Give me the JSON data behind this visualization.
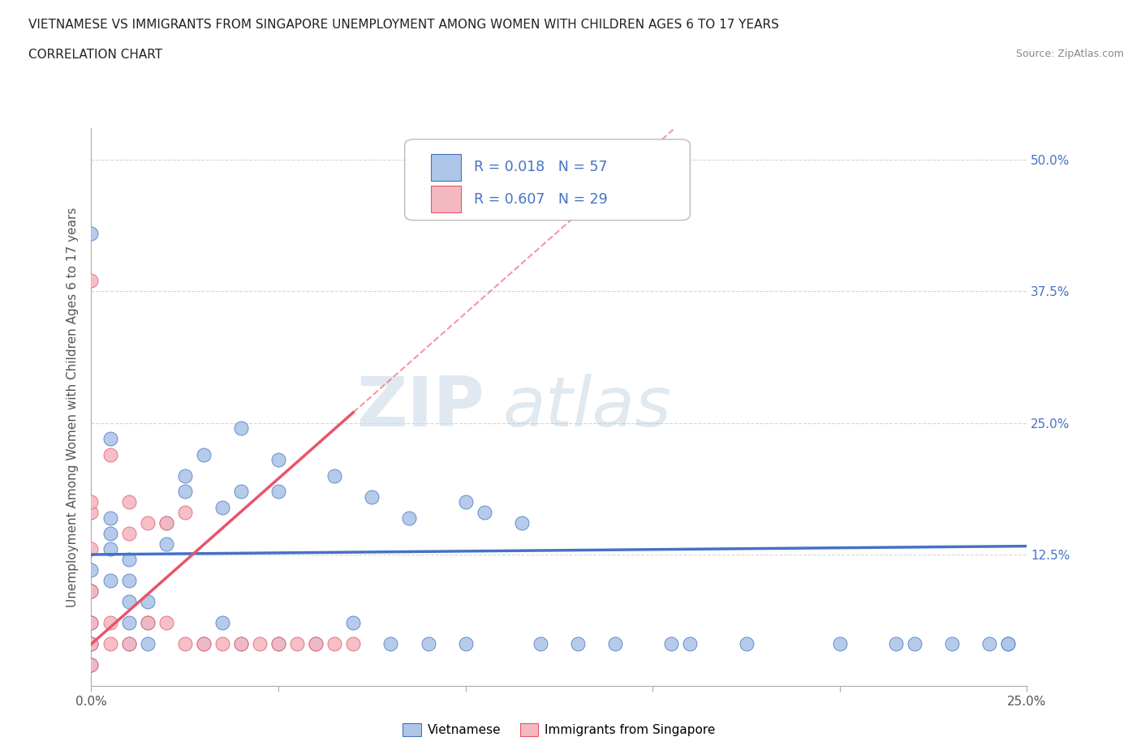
{
  "title_line1": "VIETNAMESE VS IMMIGRANTS FROM SINGAPORE UNEMPLOYMENT AMONG WOMEN WITH CHILDREN AGES 6 TO 17 YEARS",
  "title_line2": "CORRELATION CHART",
  "source_text": "Source: ZipAtlas.com",
  "ylabel": "Unemployment Among Women with Children Ages 6 to 17 years",
  "xlim": [
    0.0,
    0.25
  ],
  "ylim": [
    0.0,
    0.53
  ],
  "x_ticks": [
    0.0,
    0.05,
    0.1,
    0.15,
    0.2,
    0.25
  ],
  "x_tick_labels": [
    "0.0%",
    "",
    "",
    "",
    "",
    "25.0%"
  ],
  "y_ticks": [
    0.0,
    0.125,
    0.25,
    0.375,
    0.5
  ],
  "y_tick_labels_right": [
    "",
    "12.5%",
    "25.0%",
    "37.5%",
    "50.0%"
  ],
  "r_vietnamese": 0.018,
  "n_vietnamese": 57,
  "r_singapore": 0.607,
  "n_singapore": 29,
  "color_vietnamese": "#aec6e8",
  "color_singapore": "#f4b8c1",
  "line_color_vietnamese": "#4472c4",
  "line_color_singapore": "#e8546a",
  "watermark_zip": "ZIP",
  "watermark_atlas": "atlas",
  "grid_color": "#cccccc",
  "vietnamese_x": [
    0.0,
    0.0,
    0.0,
    0.0,
    0.0,
    0.005,
    0.005,
    0.005,
    0.005,
    0.005,
    0.01,
    0.01,
    0.01,
    0.01,
    0.01,
    0.015,
    0.015,
    0.015,
    0.02,
    0.02,
    0.025,
    0.025,
    0.03,
    0.03,
    0.035,
    0.035,
    0.04,
    0.04,
    0.04,
    0.05,
    0.05,
    0.05,
    0.06,
    0.065,
    0.07,
    0.075,
    0.08,
    0.085,
    0.09,
    0.1,
    0.1,
    0.105,
    0.115,
    0.12,
    0.13,
    0.14,
    0.155,
    0.16,
    0.175,
    0.2,
    0.215,
    0.22,
    0.23,
    0.24,
    0.245,
    0.245,
    0.0
  ],
  "vietnamese_y": [
    0.04,
    0.06,
    0.09,
    0.11,
    0.43,
    0.1,
    0.13,
    0.145,
    0.16,
    0.235,
    0.04,
    0.06,
    0.08,
    0.1,
    0.12,
    0.04,
    0.06,
    0.08,
    0.135,
    0.155,
    0.185,
    0.2,
    0.04,
    0.22,
    0.06,
    0.17,
    0.04,
    0.185,
    0.245,
    0.04,
    0.185,
    0.215,
    0.04,
    0.2,
    0.06,
    0.18,
    0.04,
    0.16,
    0.04,
    0.04,
    0.175,
    0.165,
    0.155,
    0.04,
    0.04,
    0.04,
    0.04,
    0.04,
    0.04,
    0.04,
    0.04,
    0.04,
    0.04,
    0.04,
    0.04,
    0.04,
    0.02
  ],
  "singapore_x": [
    0.0,
    0.0,
    0.0,
    0.0,
    0.0,
    0.0,
    0.0,
    0.005,
    0.005,
    0.005,
    0.01,
    0.01,
    0.01,
    0.015,
    0.015,
    0.02,
    0.02,
    0.025,
    0.025,
    0.03,
    0.035,
    0.04,
    0.045,
    0.05,
    0.055,
    0.06,
    0.065,
    0.07,
    0.0
  ],
  "singapore_y": [
    0.04,
    0.06,
    0.09,
    0.13,
    0.165,
    0.175,
    0.385,
    0.04,
    0.06,
    0.22,
    0.04,
    0.145,
    0.175,
    0.06,
    0.155,
    0.06,
    0.155,
    0.04,
    0.165,
    0.04,
    0.04,
    0.04,
    0.04,
    0.04,
    0.04,
    0.04,
    0.04,
    0.04,
    0.02
  ]
}
